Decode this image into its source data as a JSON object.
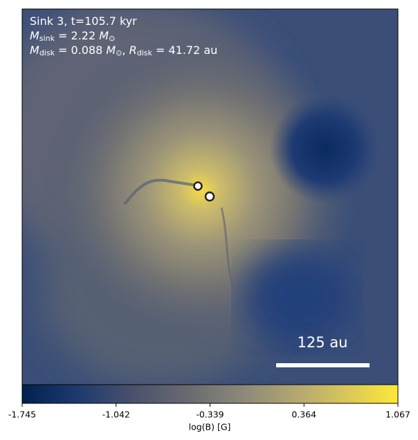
{
  "annotation": {
    "lines": [
      {
        "parts": [
          {
            "text": "Sink 3, t=105.7 kyr"
          }
        ]
      },
      {
        "parts": [
          {
            "text": "M",
            "italic": true
          },
          {
            "text": "sink",
            "sub": true
          },
          {
            "text": " = 2.22 "
          },
          {
            "text": "M",
            "italic": true
          },
          {
            "text": "⊙",
            "sub": true
          }
        ]
      },
      {
        "parts": [
          {
            "text": "M",
            "italic": true
          },
          {
            "text": "disk",
            "sub": true
          },
          {
            "text": " = 0.088 "
          },
          {
            "text": "M",
            "italic": true
          },
          {
            "text": "⊙",
            "sub": true
          },
          {
            "text": ", "
          },
          {
            "text": "R",
            "italic": true
          },
          {
            "text": "disk",
            "sub": true
          },
          {
            "text": " = 41.72 au"
          }
        ]
      }
    ]
  },
  "scale_bar": {
    "label": "125 au"
  },
  "colorbar": {
    "label": "log(B) [G]",
    "ticks": [
      -1.745,
      -1.042,
      -0.339,
      0.364,
      1.067
    ]
  }
}
